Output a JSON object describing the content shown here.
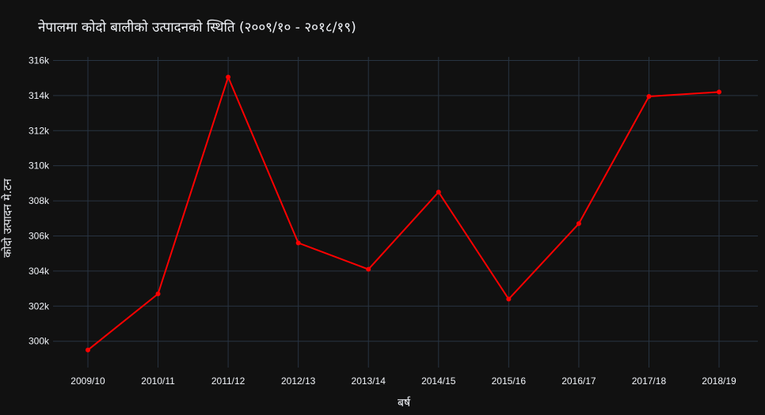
{
  "chart_data": {
    "type": "line",
    "title": "नेपालमा कोदो बालीको उत्पादनको स्थिति (२००९/१० - २०१८/१९)",
    "xlabel": "बर्ष",
    "ylabel": "कोदो उत्पादन मे.टन",
    "categories": [
      "2009/10",
      "2010/11",
      "2011/12",
      "2012/13",
      "2013/14",
      "2014/15",
      "2015/16",
      "2016/17",
      "2017/18",
      "2018/19"
    ],
    "series": [
      {
        "values": [
          299500,
          302700,
          315050,
          305600,
          304100,
          308500,
          302400,
          306700,
          313950,
          314200
        ],
        "color": "#ff0000"
      }
    ],
    "ylim": [
      298500,
      316200
    ],
    "yticks": [
      300000,
      302000,
      304000,
      306000,
      308000,
      310000,
      312000,
      314000,
      316000
    ],
    "ytick_labels": [
      "300k",
      "302k",
      "304k",
      "306k",
      "308k",
      "310k",
      "312k",
      "314k",
      "316k"
    ],
    "grid": true,
    "legend": "none"
  },
  "colors": {
    "background": "#111111",
    "grid": "#283442",
    "text": "#f2f5fa",
    "series": "#ff0000"
  }
}
